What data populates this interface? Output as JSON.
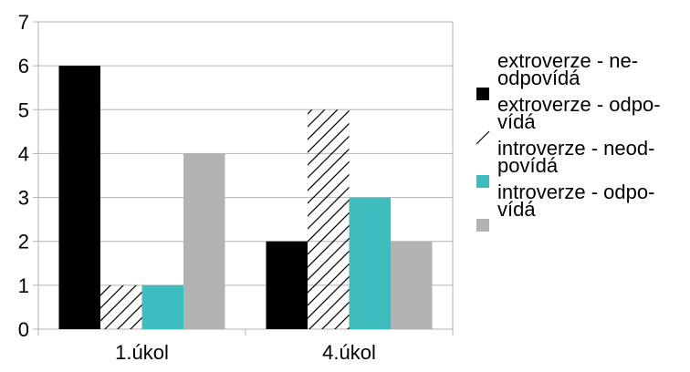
{
  "chart_data": {
    "type": "bar",
    "categories": [
      "1.úkol",
      "4.úkol"
    ],
    "series": [
      {
        "name_lines": [
          "extroverze - ne-",
          "odpovídá"
        ],
        "values": [
          6,
          2
        ],
        "color": "#000000",
        "pattern": "solid"
      },
      {
        "name_lines": [
          "extroverze - odpo-",
          "vídá"
        ],
        "values": [
          1,
          5
        ],
        "color": "#000000",
        "pattern": "diagonal-hatch"
      },
      {
        "name_lines": [
          "introverze - neod-",
          "povídá"
        ],
        "values": [
          1,
          3
        ],
        "color": "#3fbdbe",
        "pattern": "solid"
      },
      {
        "name_lines": [
          "introverze - odpo-",
          "vídá"
        ],
        "values": [
          4,
          2
        ],
        "color": "#b2b2b2",
        "pattern": "solid"
      }
    ],
    "yticks": [
      "0",
      "1",
      "2",
      "3",
      "4",
      "5",
      "6",
      "7"
    ],
    "ylim": [
      0,
      7
    ],
    "grid": true,
    "legend_position": "right"
  }
}
